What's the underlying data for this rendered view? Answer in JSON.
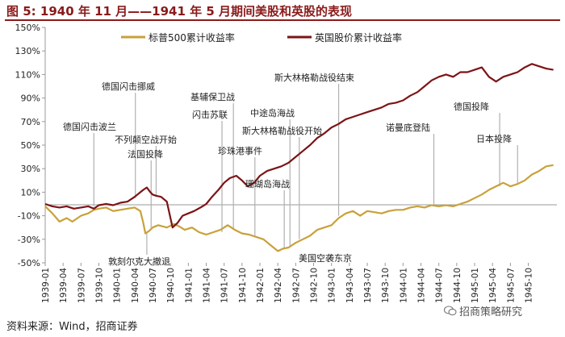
{
  "figure_title": "图 5:  1940 年 11 月——1941 年 5 月期间美股和英股的表现",
  "source": "资料来源：Wind，招商证券",
  "watermark": "招商策略研究",
  "watermark_icon": "wechat-icon",
  "colors": {
    "us": "#c9a13b",
    "uk": "#7b1416",
    "title": "#8b1a1a",
    "annotation_line": "#b0b0b0"
  },
  "chart_data": {
    "type": "line",
    "y_ticks": [
      "150%",
      "130%",
      "110%",
      "90%",
      "70%",
      "50%",
      "30%",
      "10%",
      "-10%",
      "-30%",
      "-50%"
    ],
    "ylim": [
      -50,
      150
    ],
    "x_ticks": [
      "1939-01",
      "1939-04",
      "1939-07",
      "1939-10",
      "1940-01",
      "1940-04",
      "1940-07",
      "1940-10",
      "1941-01",
      "1941-04",
      "1941-07",
      "1941-10",
      "1942-01",
      "1942-04",
      "1942-07",
      "1942-10",
      "1943-01",
      "1943-04",
      "1943-07",
      "1943-10",
      "1944-01",
      "1944-04",
      "1944-07",
      "1944-10",
      "1945-01",
      "1945-04",
      "1945-07",
      "1945-10"
    ],
    "x_range": [
      1939.0,
      1946.15
    ],
    "legend": [
      "标普500累计收益率",
      "英国股价累计收益率"
    ],
    "legend_position": "top",
    "series": [
      {
        "name": "标普500累计收益率",
        "x": [
          1939.0,
          1939.1,
          1939.2,
          1939.3,
          1939.38,
          1939.5,
          1939.6,
          1939.68,
          1939.75,
          1939.85,
          1939.95,
          1940.05,
          1940.15,
          1940.25,
          1940.33,
          1940.37,
          1940.4,
          1940.45,
          1940.5,
          1940.58,
          1940.7,
          1940.8,
          1940.87,
          1940.95,
          1941.05,
          1941.15,
          1941.25,
          1941.35,
          1941.45,
          1941.55,
          1941.65,
          1941.75,
          1941.85,
          1941.95,
          1942.05,
          1942.15,
          1942.25,
          1942.32,
          1942.4,
          1942.5,
          1942.6,
          1942.7,
          1942.8,
          1942.9,
          1943.0,
          1943.1,
          1943.2,
          1943.3,
          1943.4,
          1943.5,
          1943.6,
          1943.7,
          1943.8,
          1943.9,
          1944.0,
          1944.1,
          1944.2,
          1944.3,
          1944.4,
          1944.5,
          1944.6,
          1944.7,
          1944.8,
          1944.9,
          1945.0,
          1945.1,
          1945.2,
          1945.3,
          1945.4,
          1945.5,
          1945.6,
          1945.7,
          1945.8,
          1945.9,
          1946.0,
          1946.1
        ],
        "values": [
          -2,
          -8,
          -15,
          -12,
          -15,
          -10,
          -8,
          -5,
          -4,
          -3,
          -6,
          -5,
          -4,
          -3,
          -6,
          -16,
          -25,
          -23,
          -20,
          -18,
          -20,
          -17,
          -19,
          -22,
          -20,
          -24,
          -26,
          -24,
          -22,
          -18,
          -22,
          -25,
          -26,
          -28,
          -30,
          -35,
          -40,
          -38,
          -37,
          -33,
          -30,
          -27,
          -22,
          -20,
          -18,
          -12,
          -8,
          -6,
          -10,
          -6,
          -7,
          -8,
          -6,
          -5,
          -5,
          -3,
          -2,
          -3,
          -1,
          -2,
          -1,
          -2,
          0,
          2,
          5,
          8,
          12,
          15,
          18,
          15,
          17,
          20,
          25,
          28,
          32,
          33
        ]
      },
      {
        "name": "英国股价累计收益率",
        "x": [
          1939.0,
          1939.1,
          1939.2,
          1939.3,
          1939.4,
          1939.5,
          1939.6,
          1939.68,
          1939.75,
          1939.85,
          1939.95,
          1940.05,
          1940.15,
          1940.25,
          1940.33,
          1940.37,
          1940.42,
          1940.47,
          1940.5,
          1940.55,
          1940.62,
          1940.7,
          1940.78,
          1940.85,
          1940.92,
          1941.0,
          1941.08,
          1941.17,
          1941.25,
          1941.33,
          1941.42,
          1941.5,
          1941.58,
          1941.67,
          1941.75,
          1941.83,
          1941.92,
          1942.0,
          1942.1,
          1942.2,
          1942.3,
          1942.4,
          1942.5,
          1942.6,
          1942.7,
          1942.8,
          1942.9,
          1943.0,
          1943.1,
          1943.2,
          1943.3,
          1943.4,
          1943.5,
          1943.6,
          1943.7,
          1943.8,
          1943.9,
          1944.0,
          1944.1,
          1944.2,
          1944.3,
          1944.4,
          1944.5,
          1944.6,
          1944.7,
          1944.8,
          1944.9,
          1945.0,
          1945.1,
          1945.2,
          1945.3,
          1945.4,
          1945.5,
          1945.6,
          1945.7,
          1945.8,
          1945.9,
          1946.0,
          1946.1
        ],
        "values": [
          0,
          -2,
          -3,
          -2,
          -4,
          -3,
          -2,
          -4,
          -1,
          0,
          -1,
          1,
          2,
          6,
          10,
          12,
          14,
          10,
          8,
          7,
          6,
          2,
          -20,
          -16,
          -10,
          -8,
          -6,
          -3,
          0,
          6,
          12,
          18,
          22,
          24,
          20,
          15,
          18,
          24,
          28,
          30,
          32,
          35,
          40,
          45,
          50,
          56,
          60,
          65,
          68,
          72,
          74,
          76,
          78,
          80,
          82,
          85,
          86,
          88,
          92,
          95,
          100,
          105,
          108,
          110,
          108,
          112,
          112,
          114,
          116,
          108,
          104,
          108,
          110,
          112,
          116,
          119,
          117,
          115,
          114
        ]
      }
    ],
    "annotations": [
      {
        "text": "德国闪击波兰",
        "x": 1939.68
      },
      {
        "text": "德国闪击挪威",
        "x": 1940.26
      },
      {
        "text": "不列颠空战开始",
        "x": 1940.55
      },
      {
        "text": "法国投降",
        "x": 1940.48
      },
      {
        "text": "敦刻尔克大撤退",
        "x": 1940.42
      },
      {
        "text": "基辅保卫战",
        "x": 1941.63
      },
      {
        "text": "闪击苏联",
        "x": 1941.47
      },
      {
        "text": "珍珠港事件",
        "x": 1941.93
      },
      {
        "text": "中途岛海战",
        "x": 1942.42
      },
      {
        "text": "斯大林格勒战役开始",
        "x": 1942.55
      },
      {
        "text": "珊瑚岛海战",
        "x": 1942.34
      },
      {
        "text": "美国空袭东京",
        "x": 1942.28
      },
      {
        "text": "斯大林格勒战役结束",
        "x": 1943.1
      },
      {
        "text": "诺曼底登陆",
        "x": 1944.43
      },
      {
        "text": "德国投降",
        "x": 1945.35
      },
      {
        "text": "日本投降",
        "x": 1945.6
      }
    ]
  }
}
